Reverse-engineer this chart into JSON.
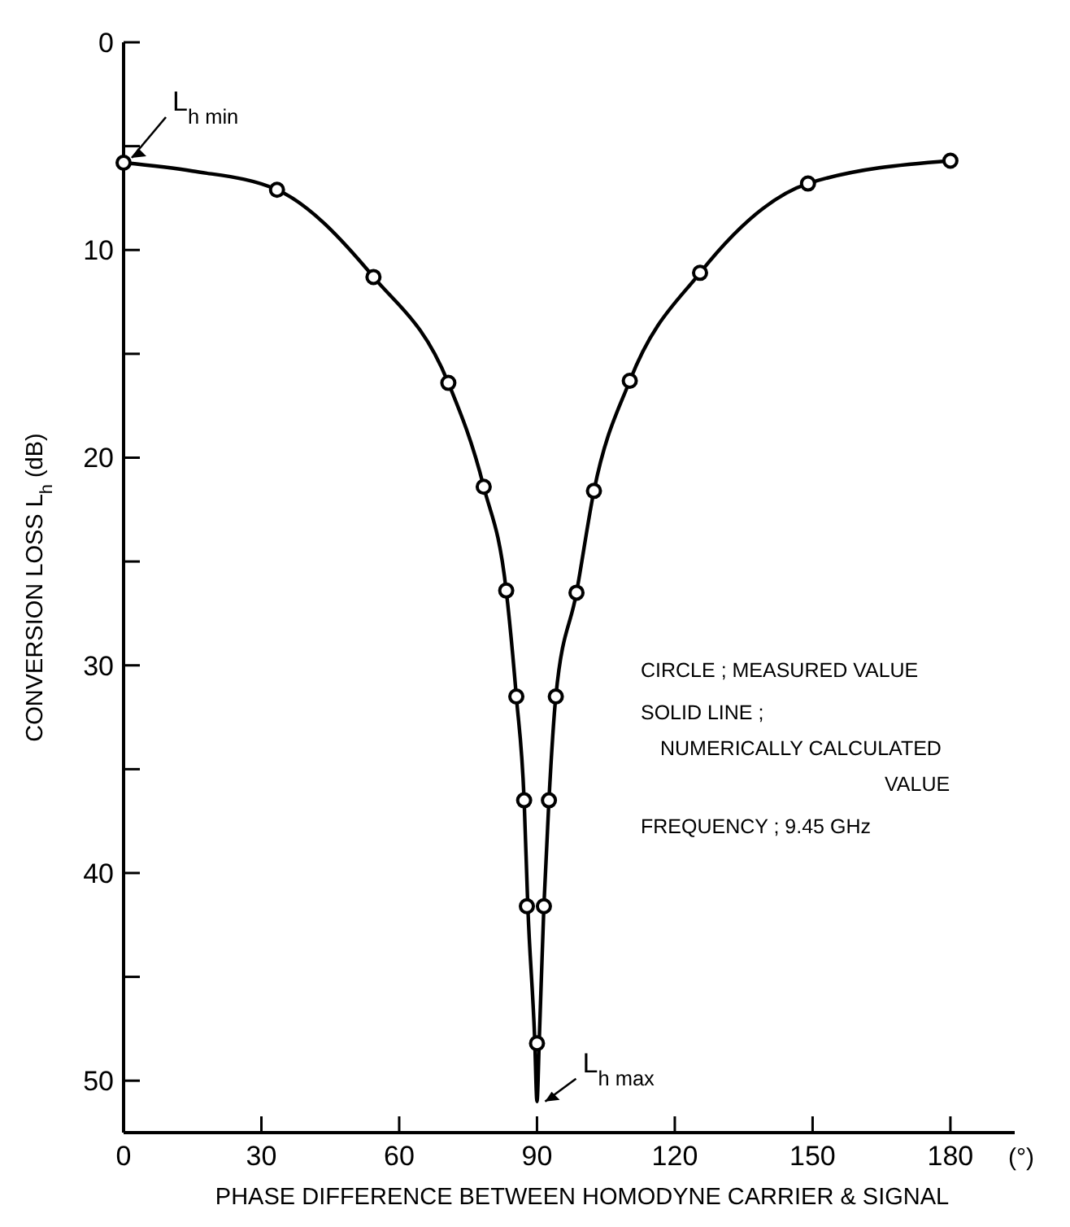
{
  "chart_data": {
    "type": "scatter",
    "xlabel": "PHASE DIFFERENCE BETWEEN HOMODYNE CARRIER & SIGNAL",
    "ylabel": "CONVERSION LOSS L$_{h}$ (dB)",
    "xlim": [
      0,
      194
    ],
    "xticks": [
      0,
      30,
      60,
      90,
      120,
      150,
      180
    ],
    "ylim": [
      52.5,
      0
    ],
    "yticks": [
      0,
      {
        "value": 5,
        "label": null
      },
      10,
      {
        "value": 15,
        "label": null
      },
      20,
      {
        "value": 25,
        "label": null
      },
      30,
      {
        "value": 35,
        "label": null
      },
      40,
      {
        "value": 45,
        "label": null
      },
      50
    ],
    "grid": false,
    "series": [
      {
        "type": "line",
        "color": "#000000",
        "marker": "none",
        "line_style": "solid",
        "x": [
          0,
          15,
          33.4,
          54.4,
          70.7,
          78.4,
          83.3,
          85.5,
          87.2,
          88,
          89.5,
          90,
          90.5,
          91.5,
          92.6,
          94.1,
          98.6,
          102.4,
          110.2,
          125.5,
          149,
          180
        ],
        "values": [
          5.8,
          6.2,
          7.1,
          11.3,
          16.4,
          21.4,
          26.4,
          31.5,
          36.5,
          41.6,
          48,
          51,
          48,
          41.6,
          36.5,
          31.5,
          26.5,
          21.6,
          16.3,
          11.1,
          6.8,
          5.7
        ]
      },
      {
        "type": "scatter",
        "color": "#000000",
        "marker": "circle",
        "x": [
          0,
          33.4,
          54.4,
          70.7,
          78.4,
          83.3,
          85.5,
          87.2,
          87.8,
          90,
          91.5,
          92.6,
          94.1,
          98.6,
          102.4,
          110.2,
          125.5,
          149,
          180
        ],
        "values": [
          5.8,
          7.1,
          11.3,
          16.4,
          21.4,
          26.4,
          31.5,
          36.5,
          41.6,
          48.2,
          41.6,
          36.5,
          31.5,
          26.5,
          21.6,
          16.3,
          11.1,
          6.8,
          5.7
        ]
      }
    ],
    "annotations": [
      {
        "text": "L$_{h min}$",
        "x": 0,
        "y": 5.8
      },
      {
        "text": "L$_{h max}$",
        "x": 90,
        "y": 51
      },
      "(°)",
      "CIRCLE ; MEASURED VALUE",
      "SOLID LINE ;",
      "NUMERICALLY CALCULATED",
      "VALUE",
      "FREQUENCY ; 9.45 GHz"
    ]
  }
}
